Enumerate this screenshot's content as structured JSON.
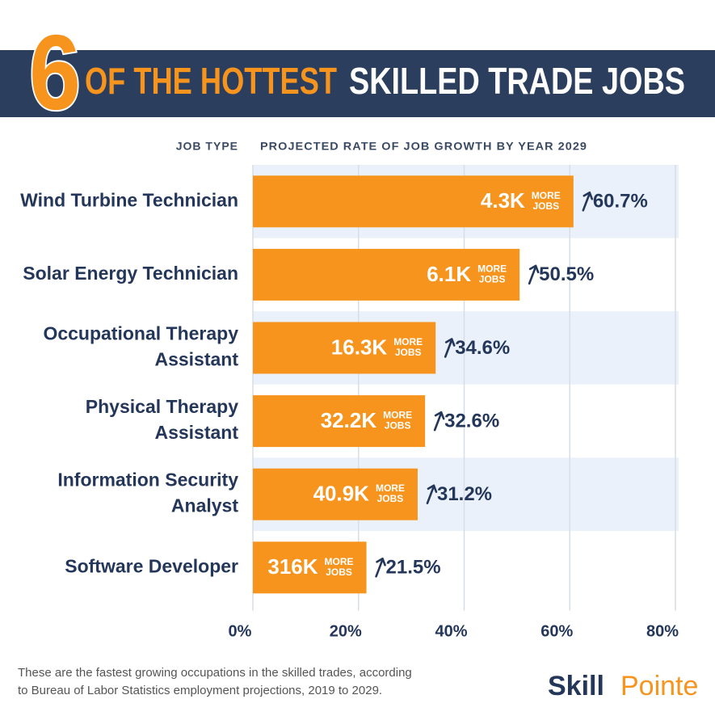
{
  "chart_data": {
    "type": "bar",
    "orientation": "horizontal",
    "title_number": "6",
    "title_highlight": "OF THE HOTTEST",
    "title_rest": "SKILLED TRADE JOBS",
    "category_header": "JOB TYPE",
    "value_header": "PROJECTED RATE OF JOB GROWTH BY YEAR 2029",
    "categories": [
      "Wind Turbine Technician",
      "Solar Energy Technician",
      "Occupational Therapy\nAssistant",
      "Physical Therapy\nAssistant",
      "Information Security\nAnalyst",
      "Software Developer"
    ],
    "values": [
      60.7,
      50.5,
      34.6,
      32.6,
      31.2,
      21.5
    ],
    "value_labels": [
      "60.7%",
      "50.5%",
      "34.6%",
      "32.6%",
      "31.2%",
      "21.5%"
    ],
    "bar_labels": [
      "4.3K",
      "6.1K",
      "16.3K",
      "32.2K",
      "40.9K",
      "316K"
    ],
    "bar_label_unit": "MORE\nJOBS",
    "color": "#f7941d",
    "xlim": [
      0,
      80
    ],
    "xticks": [
      {
        "value": 0,
        "label": "0%"
      },
      {
        "value": 20,
        "label": "20%"
      },
      {
        "value": 40,
        "label": "40%"
      },
      {
        "value": 60,
        "label": "60%"
      },
      {
        "value": 80,
        "label": "80%"
      }
    ],
    "grid": true,
    "footnote": "These are the fastest growing occupations in the skilled trades, according\nto Bureau of Labor Statistics employment projections, 2019 to 2029.",
    "brand_first": "Skill",
    "brand_second": "Pointe"
  }
}
